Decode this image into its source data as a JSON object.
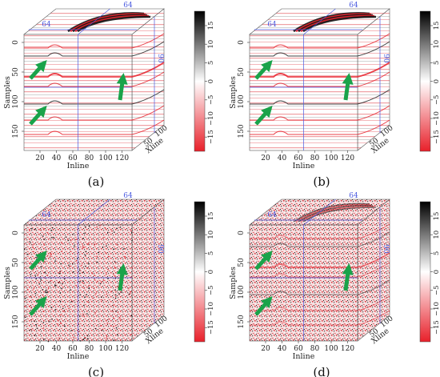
{
  "figure": {
    "colorscale": {
      "ticks": [
        "15",
        "10",
        "5",
        "0",
        "−5",
        "−10",
        "−15"
      ],
      "colors": [
        "#000000",
        "#ffffff",
        "#e8202a"
      ]
    },
    "panels": [
      {
        "label": "(a)",
        "xlabel": "Inline",
        "ylabel": "Samples",
        "zlabel": "Xline",
        "xticks": [
          "20",
          "40",
          "60",
          "80",
          "100",
          "120"
        ],
        "yticks": [
          "0",
          "50",
          "100",
          "150"
        ],
        "zticks": [
          "50",
          "100"
        ],
        "top_marker": "64",
        "left_marker": "64",
        "side_marker": "90",
        "style": "clean"
      },
      {
        "label": "(b)",
        "xlabel": "Inline",
        "ylabel": "Samples",
        "zlabel": "Xline",
        "xticks": [
          "20",
          "40",
          "60",
          "80",
          "100",
          "120"
        ],
        "yticks": [
          "0",
          "50",
          "100",
          "150"
        ],
        "zticks": [
          "50",
          "100"
        ],
        "top_marker": "64",
        "left_marker": "64",
        "side_marker": "90",
        "style": "clean"
      },
      {
        "label": "(c)",
        "xlabel": "Inline",
        "ylabel": "Samples",
        "zlabel": "Xline",
        "xticks": [
          "20",
          "40",
          "60",
          "80",
          "100",
          "120"
        ],
        "yticks": [
          "0",
          "50",
          "100",
          "150"
        ],
        "zticks": [
          "50",
          "100"
        ],
        "top_marker": "64",
        "left_marker": "64",
        "side_marker": "90",
        "style": "noisy"
      },
      {
        "label": "(d)",
        "xlabel": "Inline",
        "ylabel": "Samples",
        "zlabel": "Xline",
        "xticks": [
          "20",
          "40",
          "60",
          "80",
          "100",
          "120"
        ],
        "yticks": [
          "0",
          "50",
          "100",
          "150"
        ],
        "zticks": [
          "50",
          "100"
        ],
        "top_marker": "64",
        "left_marker": "64",
        "side_marker": "90",
        "style": "noisy-residual"
      }
    ],
    "arrow_color": "#1aa34a"
  }
}
